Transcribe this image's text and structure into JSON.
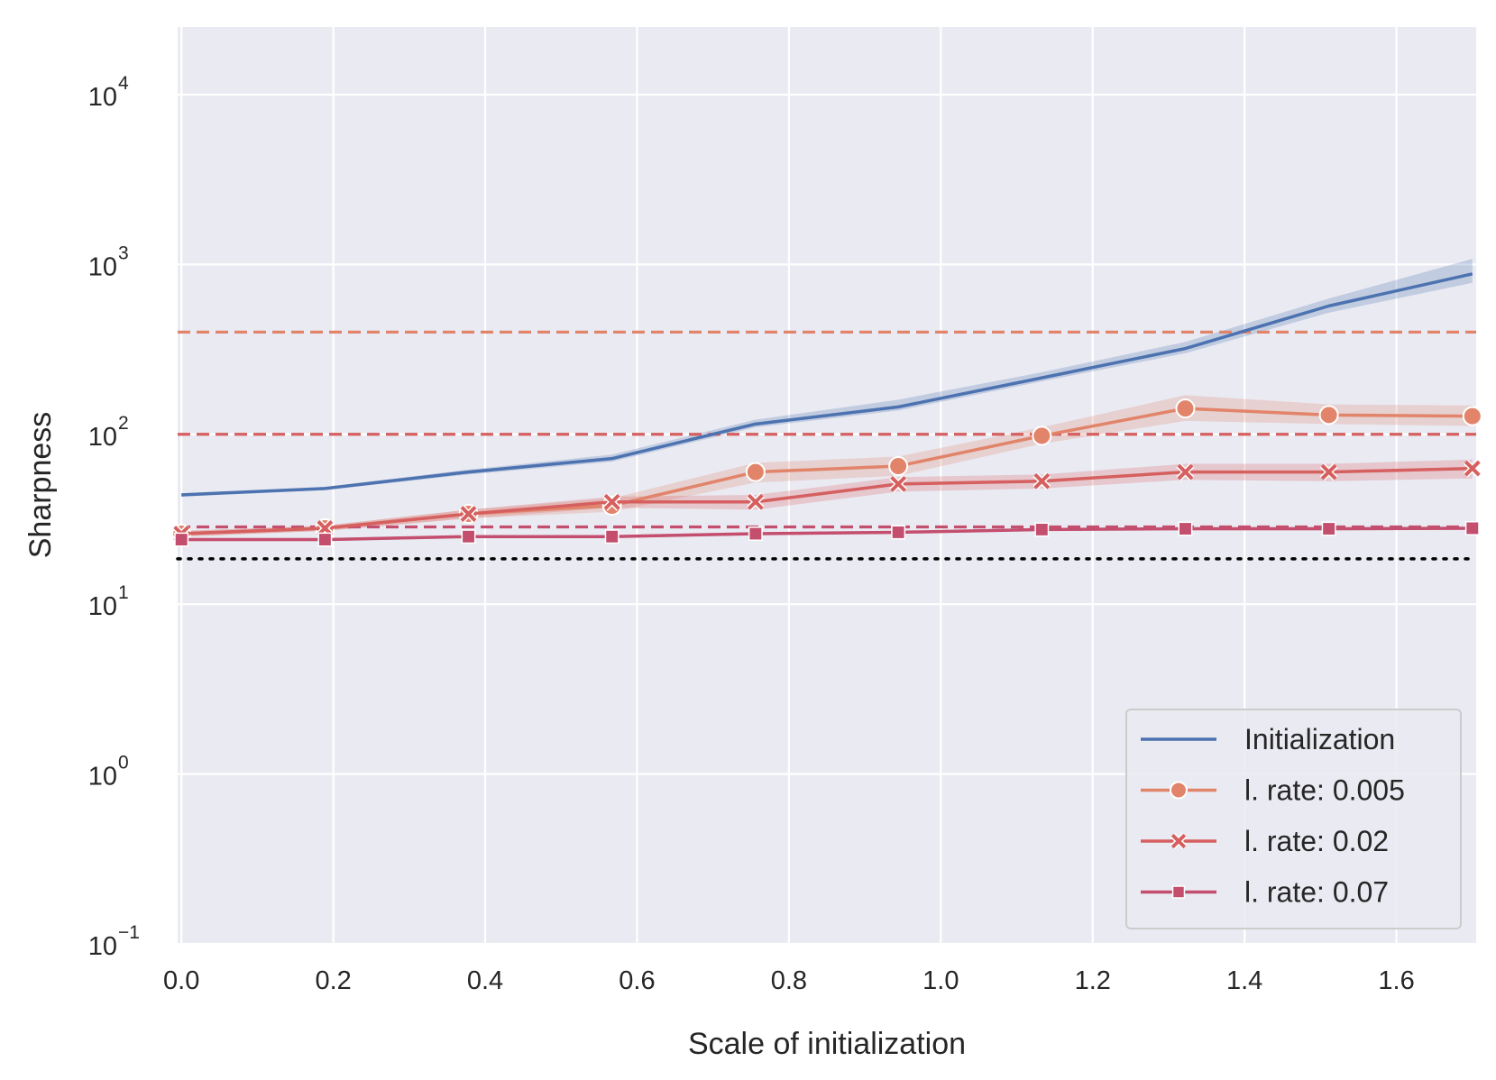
{
  "chart_data": {
    "type": "line",
    "title": "",
    "xlabel": "Scale of initialization",
    "ylabel": "Sharpness",
    "yscale": "log",
    "xlim": [
      -0.005,
      1.705
    ],
    "ylim": [
      0.1,
      25000
    ],
    "x_ticks": [
      {
        "value": 0.0,
        "label": "0.0"
      },
      {
        "value": 0.2,
        "label": "0.2"
      },
      {
        "value": 0.4,
        "label": "0.4"
      },
      {
        "value": 0.6,
        "label": "0.6"
      },
      {
        "value": 0.8,
        "label": "0.8"
      },
      {
        "value": 1.0,
        "label": "1.0"
      },
      {
        "value": 1.2,
        "label": "1.2"
      },
      {
        "value": 1.4,
        "label": "1.4"
      },
      {
        "value": 1.6,
        "label": "1.6"
      }
    ],
    "y_ticks": [
      {
        "value": 0.1,
        "base": "10",
        "exp": "−1"
      },
      {
        "value": 1,
        "base": "10",
        "exp": "0"
      },
      {
        "value": 10,
        "base": "10",
        "exp": "1"
      },
      {
        "value": 100,
        "base": "10",
        "exp": "2"
      },
      {
        "value": 1000,
        "base": "10",
        "exp": "3"
      },
      {
        "value": 10000,
        "base": "10",
        "exp": "4"
      }
    ],
    "x": [
      0.0,
      0.189,
      0.378,
      0.567,
      0.756,
      0.944,
      1.133,
      1.322,
      1.511,
      1.7
    ],
    "series": [
      {
        "name": "Initialization",
        "color": "#4c72b0",
        "marker": "none",
        "values": [
          44,
          48,
          60,
          72,
          115,
          145,
          215,
          320,
          570,
          880
        ],
        "lower": [
          43,
          47,
          58,
          69,
          110,
          138,
          205,
          300,
          520,
          780
        ],
        "upper": [
          45,
          49,
          62,
          76,
          122,
          160,
          232,
          350,
          630,
          1080
        ]
      },
      {
        "name": "l. rate: 0.005",
        "color": "#e1846a",
        "marker": "circle",
        "values": [
          26,
          28,
          34,
          38,
          60,
          65,
          98,
          142,
          130,
          128
        ],
        "lower": [
          25,
          27,
          32,
          35,
          52,
          57,
          88,
          120,
          115,
          112
        ],
        "upper": [
          27,
          29,
          36,
          42,
          68,
          74,
          110,
          170,
          150,
          148
        ]
      },
      {
        "name": "l. rate: 0.02",
        "color": "#d65f5f",
        "marker": "x",
        "values": [
          26,
          28,
          34,
          40,
          40,
          51,
          53,
          60,
          60,
          63
        ],
        "lower": [
          25,
          27,
          32,
          37,
          36,
          46,
          48,
          54,
          53,
          55
        ],
        "upper": [
          27,
          29,
          36,
          43,
          44,
          56,
          58,
          67,
          67,
          71
        ]
      },
      {
        "name": "l. rate: 0.07",
        "color": "#c44e6e",
        "marker": "square",
        "values": [
          24,
          24,
          25,
          25,
          26,
          26.5,
          27.5,
          27.8,
          27.8,
          28
        ],
        "lower": [
          23.5,
          23.5,
          24.5,
          24.5,
          25.5,
          26,
          27,
          27.2,
          27.2,
          27.4
        ],
        "upper": [
          24.5,
          24.5,
          25.5,
          25.5,
          26.5,
          27,
          28,
          28.4,
          28.4,
          28.6
        ]
      }
    ],
    "reference_lines": [
      {
        "y": 400,
        "color": "#e1846a",
        "style": "dashed"
      },
      {
        "y": 100,
        "color": "#d65f5f",
        "style": "dashed"
      },
      {
        "y": 28.5,
        "color": "#c44e6e",
        "style": "dashed"
      },
      {
        "y": 18.5,
        "color": "#000000",
        "style": "dotted"
      }
    ],
    "legend": {
      "position": "bottom-right",
      "entries": [
        {
          "label": "Initialization",
          "color": "#4c72b0",
          "marker": "none"
        },
        {
          "label": "l. rate: 0.005",
          "color": "#e1846a",
          "marker": "circle"
        },
        {
          "label": "l. rate: 0.02",
          "color": "#d65f5f",
          "marker": "x"
        },
        {
          "label": "l. rate: 0.07",
          "color": "#c44e6e",
          "marker": "square"
        }
      ]
    },
    "grid": true,
    "background": "#eaeaf2"
  }
}
